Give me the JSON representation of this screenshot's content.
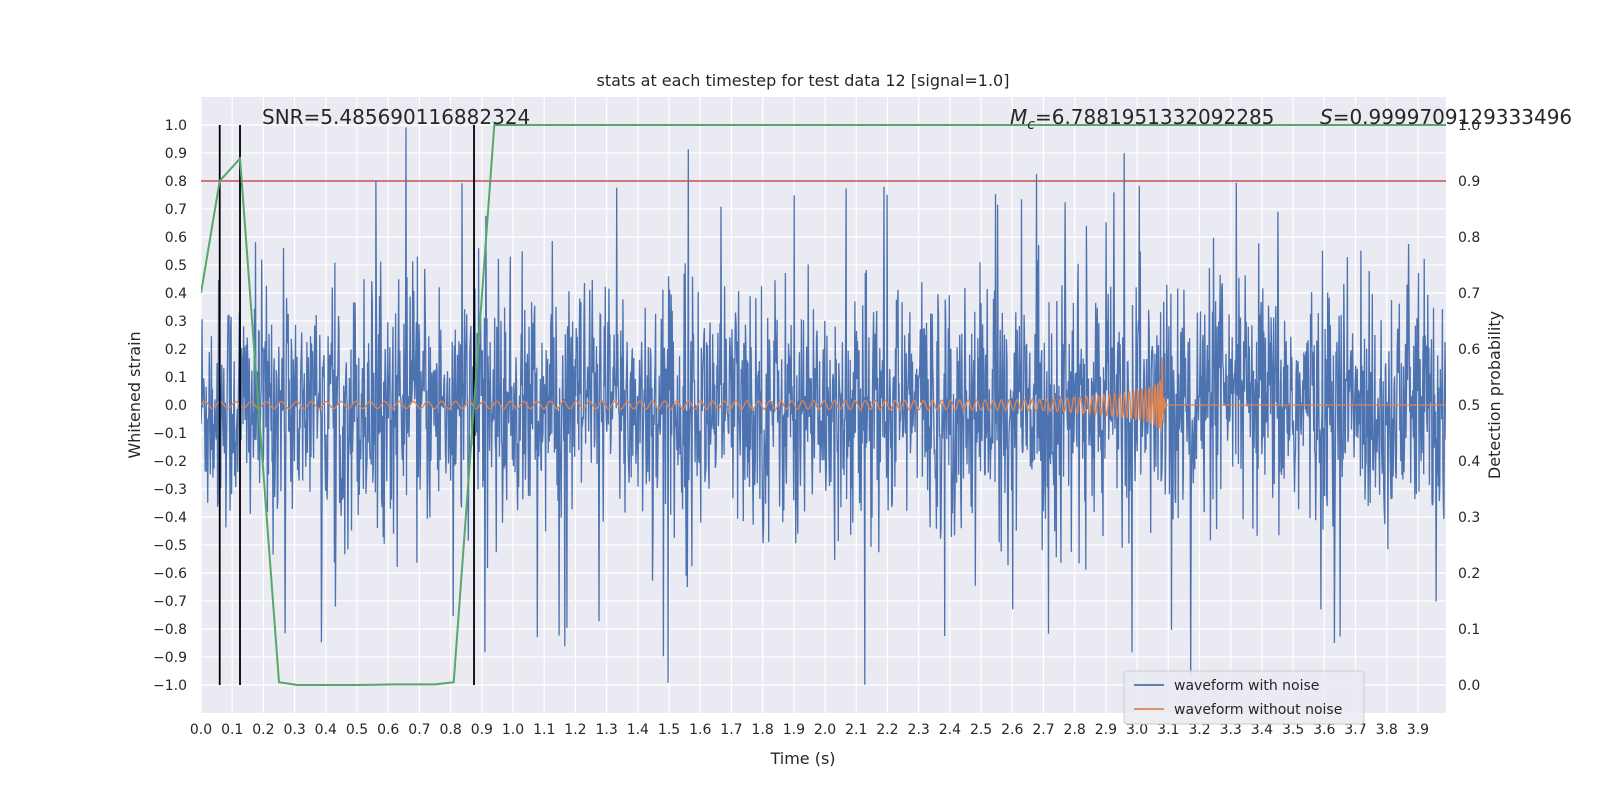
{
  "chart_data": {
    "type": "line",
    "title": "stats at each timestep for test data 12 [signal=1.0]",
    "xlabel": "Time (s)",
    "ylabel_left": "Whitened strain",
    "ylabel_right": "Detection probability",
    "xlim": [
      0.0,
      3.99
    ],
    "ylim_left": [
      -1.1,
      1.1
    ],
    "ylim_right": [
      -0.05,
      1.05
    ],
    "x_ticks": [
      "0.0",
      "0.1",
      "0.2",
      "0.3",
      "0.4",
      "0.5",
      "0.6",
      "0.7",
      "0.8",
      "0.9",
      "1.0",
      "1.1",
      "1.2",
      "1.3",
      "1.4",
      "1.5",
      "1.6",
      "1.7",
      "1.8",
      "1.9",
      "2.0",
      "2.1",
      "2.2",
      "2.3",
      "2.4",
      "2.5",
      "2.6",
      "2.7",
      "2.8",
      "2.9",
      "3.0",
      "3.1",
      "3.2",
      "3.3",
      "3.4",
      "3.5",
      "3.6",
      "3.7",
      "3.8",
      "3.9"
    ],
    "y_ticks_left": [
      "1.0",
      "0.9",
      "0.8",
      "0.7",
      "0.6",
      "0.5",
      "0.4",
      "0.3",
      "0.2",
      "0.1",
      "0.0",
      "−0.1",
      "−0.2",
      "−0.3",
      "−0.4",
      "−0.5",
      "−0.6",
      "−0.7",
      "−0.8",
      "−0.9",
      "−1.0"
    ],
    "y_ticks_right": [
      "1.0",
      "0.9",
      "0.8",
      "0.7",
      "0.6",
      "0.5",
      "0.4",
      "0.3",
      "0.2",
      "0.1",
      "0.0"
    ],
    "grid": true,
    "annotations": {
      "snr": "SNR=5.485690116882324",
      "mc": "=6.7881951332092285",
      "mc_symbol": "M",
      "mc_subscript": "c",
      "s": "=0.9999709129333496",
      "s_symbol": "S"
    },
    "threshold_line": {
      "y_right": 0.9,
      "color": "#c44e52"
    },
    "vertical_markers_x": [
      0.06,
      0.125,
      0.875
    ],
    "detection_probability": {
      "name": "detection probability",
      "color": "#55a868",
      "x": [
        0.0,
        0.06,
        0.125,
        0.25,
        0.31,
        0.5,
        0.62,
        0.75,
        0.81,
        0.875,
        0.94,
        1.0,
        1.5,
        2.0,
        2.5,
        3.0,
        3.5,
        3.99
      ],
      "y": [
        0.7,
        0.9,
        0.94,
        0.005,
        0.0,
        0.0,
        0.001,
        0.001,
        0.005,
        0.5,
        1.0,
        1.0,
        1.0,
        1.0,
        1.0,
        1.0,
        1.0,
        1.0
      ]
    },
    "series": [
      {
        "name": "waveform with noise",
        "color": "#4c72b0",
        "amplitude_typical": 0.4,
        "amplitude_max": 1.0,
        "duration_s": 3.99
      },
      {
        "name": "waveform without noise",
        "color": "#dd8452",
        "amplitude_start": 0.012,
        "amplitude_peak": 0.22,
        "peak_time_s": 3.08,
        "f_start_hz": 20,
        "f_peak_hz": 160
      }
    ],
    "legend_position": "lower-right"
  }
}
